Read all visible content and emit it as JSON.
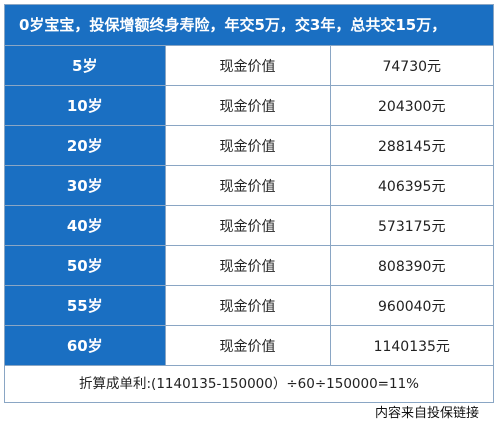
{
  "header": {
    "title": "0岁宝宝，投保增额终身寿险，年交5万，交3年，总共交15万，"
  },
  "table": {
    "rows": [
      {
        "age": "5岁",
        "label": "现金价值",
        "value": "74730元"
      },
      {
        "age": "10岁",
        "label": "现金价值",
        "value": "204300元"
      },
      {
        "age": "20岁",
        "label": "现金价值",
        "value": "288145元"
      },
      {
        "age": "30岁",
        "label": "现金价值",
        "value": "406395元"
      },
      {
        "age": "40岁",
        "label": "现金价值",
        "value": "573175元"
      },
      {
        "age": "50岁",
        "label": "现金价值",
        "value": "808390元"
      },
      {
        "age": "55岁",
        "label": "现金价值",
        "value": "960040元"
      },
      {
        "age": "60岁",
        "label": "现金价值",
        "value": "1140135元"
      }
    ]
  },
  "footer": {
    "formula": "折算成单利:(1140135-150000）÷60÷150000=11%"
  },
  "source": {
    "text": "内容来自投保链接"
  },
  "colors": {
    "header_blue": "#1a6fc2",
    "border": "#8aa6c4"
  }
}
